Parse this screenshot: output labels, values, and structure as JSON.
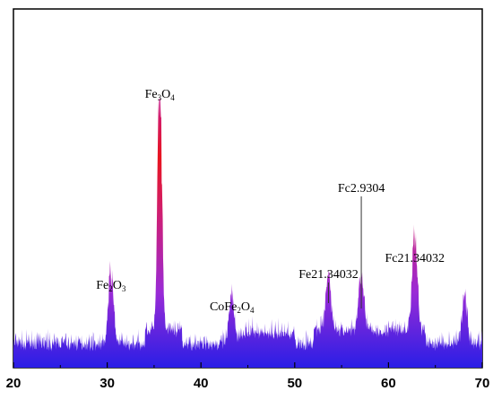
{
  "chart_data": {
    "type": "line",
    "title": "",
    "xlabel": "",
    "ylabel": "",
    "xlim": [
      20,
      70
    ],
    "x_ticks": [
      "20",
      "30",
      "40",
      "50",
      "60",
      "70"
    ],
    "y_ticks_shown": false,
    "grid": false,
    "legend": "none",
    "gradient_colors": {
      "low": "#2a1ee6",
      "mid": "#9a2bd6",
      "high": "#e8141e"
    },
    "peaks": [
      {
        "x": 30.4,
        "y": 0.26
      },
      {
        "x": 35.6,
        "y": 0.97
      },
      {
        "x": 43.3,
        "y": 0.18
      },
      {
        "x": 53.6,
        "y": 0.2
      },
      {
        "x": 57.1,
        "y": 0.21
      },
      {
        "x": 62.8,
        "y": 0.34
      },
      {
        "x": 68.1,
        "y": 0.18
      }
    ],
    "annotations": [
      {
        "id": "fe2o3",
        "label_main": "Fe",
        "sub1": "2",
        "mid": "O",
        "sub2": "3",
        "x": 30.4,
        "y": 0.26
      },
      {
        "id": "fe3o4",
        "label_main": "Fe",
        "sub1": "3",
        "mid": "O",
        "sub2": "4",
        "x": 35.6,
        "y": 0.97
      },
      {
        "id": "cofe2o4",
        "label_main": "CoFe",
        "sub1": "2",
        "mid": "O",
        "sub2": "4",
        "x": 43.3,
        "y": 0.18
      },
      {
        "id": "fe21a",
        "label_plain": "Fe21.34032",
        "x": 53.6,
        "y": 0.3,
        "line_to": 0.24
      },
      {
        "id": "fc29304",
        "label_plain": "Fc2.9304",
        "x": 57.1,
        "y": 0.62,
        "line_to": 0.22
      },
      {
        "id": "fc21b",
        "label_plain": "Fc21.34032",
        "x": 62.8,
        "y": 0.36
      }
    ]
  }
}
